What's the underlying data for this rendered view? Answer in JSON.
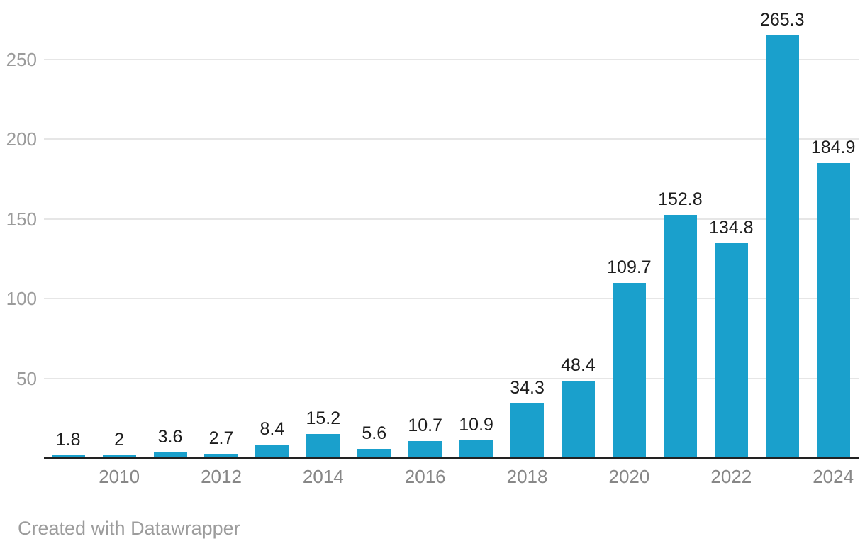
{
  "chart_data": {
    "type": "bar",
    "categories": [
      "2009",
      "2010",
      "2011",
      "2012",
      "2013",
      "2014",
      "2015",
      "2016",
      "2017",
      "2018",
      "2019",
      "2020",
      "2021",
      "2022",
      "2023",
      "2024"
    ],
    "values": [
      1.8,
      2,
      3.6,
      2.7,
      8.4,
      15.2,
      5.6,
      10.7,
      10.9,
      34.3,
      48.4,
      109.7,
      152.8,
      134.8,
      265.3,
      184.9
    ],
    "value_labels": [
      "1.8",
      "2",
      "3.6",
      "2.7",
      "8.4",
      "15.2",
      "5.6",
      "10.7",
      "10.9",
      "34.3",
      "48.4",
      "109.7",
      "152.8",
      "134.8",
      "265.3",
      "184.9"
    ],
    "title": "",
    "xlabel": "",
    "ylabel": "",
    "ylim": [
      0,
      280
    ],
    "yticks": [
      50,
      100,
      150,
      200,
      250
    ],
    "ytick_labels": [
      "50",
      "100",
      "150",
      "200",
      "250"
    ],
    "xtick_labels": [
      "2010",
      "2012",
      "2014",
      "2016",
      "2018",
      "2020",
      "2022",
      "2024"
    ],
    "xtick_bar_indices": [
      1,
      3,
      5,
      7,
      9,
      11,
      13,
      15
    ],
    "grid": true,
    "legend": false
  },
  "colors": {
    "bar": "#1AA0CC",
    "gridline": "#e6e6e6",
    "axis_line": "#222222",
    "ytick_label": "#9b9b9b",
    "xtick_label": "#878787",
    "value_label": "#1d1d1d",
    "footer": "#9c9c9c",
    "background": "#ffffff"
  },
  "footer": {
    "credit": "Created with Datawrapper"
  }
}
